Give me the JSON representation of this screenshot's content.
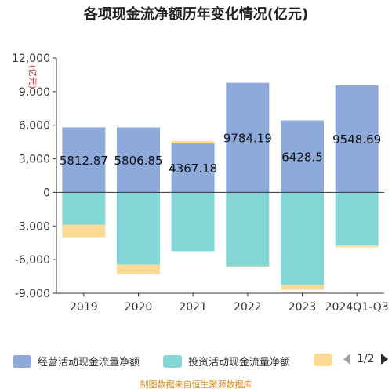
{
  "title": "各项现金流净额历年变化情况(亿元)",
  "colors": {
    "operating": "#8eaadb",
    "investing": "#85d6d6",
    "financing": "#fcd995",
    "axis": "#333333",
    "unit": "#e03030"
  },
  "chart_data": {
    "type": "bar",
    "stacked": true,
    "unit_label": "(亿元)",
    "categories": [
      "2019",
      "2020",
      "2021",
      "2022",
      "2023",
      "2024Q1-Q3"
    ],
    "ylim": [
      -9000,
      12000
    ],
    "yticks": [
      12000,
      9000,
      6000,
      3000,
      0,
      -3000,
      -6000,
      -9000
    ],
    "ytick_labels": [
      "12,000",
      "9,000",
      "6,000",
      "3,000",
      "0",
      "-3,000",
      "-6,000",
      "-9,000"
    ],
    "series": [
      {
        "name": "经营活动现金流量净额",
        "values": [
          5812.87,
          5806.85,
          4367.18,
          9784.19,
          6428.5,
          9548.69
        ],
        "labels": [
          "5812.87",
          "5806.85",
          "4367.18",
          "9784.19",
          "6428.5",
          "9548.69"
        ]
      },
      {
        "name": "投资活动现金流量净额",
        "values": [
          -2900,
          -6450,
          -5250,
          -6600,
          -8250,
          -4700
        ]
      },
      {
        "values": [
          -1100,
          -850,
          200,
          -50,
          -450,
          -200
        ]
      }
    ]
  },
  "legend": {
    "items": [
      "经营活动现金流量净额",
      "投资活动现金流量净额"
    ],
    "pager": "1/2"
  },
  "source": "制图数据来自恒生聚源数据库"
}
